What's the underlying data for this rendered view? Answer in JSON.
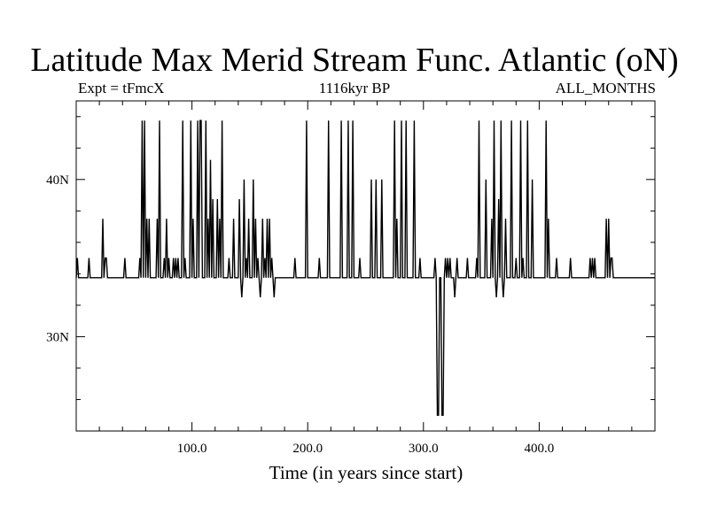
{
  "chart_data": {
    "type": "line",
    "title": "Latitude Max Merid Stream Func. Atlantic (oN)",
    "subtitle_left": "Expt = tFmcX",
    "subtitle_center": "1116kyr BP",
    "subtitle_right": "ALL_MONTHS",
    "xlabel": "Time (in years since start)",
    "ylabel": "",
    "xlim": [
      0,
      500
    ],
    "ylim": [
      24,
      45
    ],
    "x_ticks": [
      100,
      200,
      300,
      400
    ],
    "x_tick_labels": [
      "100.0",
      "200.0",
      "300.0",
      "400.0"
    ],
    "y_ticks": [
      30,
      40
    ],
    "y_tick_labels": [
      "30N",
      "40N"
    ],
    "baseline": 33.75,
    "series": [
      {
        "values": [
          [
            0,
            33.75
          ],
          [
            1,
            35.0
          ],
          [
            2,
            33.75
          ],
          [
            10,
            33.75
          ],
          [
            11,
            35.0
          ],
          [
            12,
            33.75
          ],
          [
            22,
            33.75
          ],
          [
            23,
            37.5
          ],
          [
            24,
            33.75
          ],
          [
            25,
            35.0
          ],
          [
            26,
            35.0
          ],
          [
            27,
            33.75
          ],
          [
            41,
            33.75
          ],
          [
            42,
            35.0
          ],
          [
            43,
            33.75
          ],
          [
            54,
            33.75
          ],
          [
            55,
            35.0
          ],
          [
            56,
            33.75
          ],
          [
            57,
            43.75
          ],
          [
            58,
            33.75
          ],
          [
            59,
            43.75
          ],
          [
            60,
            33.75
          ],
          [
            61,
            37.5
          ],
          [
            62,
            33.75
          ],
          [
            63,
            37.5
          ],
          [
            64,
            33.75
          ],
          [
            69,
            33.75
          ],
          [
            70,
            37.5
          ],
          [
            71,
            33.75
          ],
          [
            72,
            43.75
          ],
          [
            73,
            33.75
          ],
          [
            75,
            33.75
          ],
          [
            76,
            35.0
          ],
          [
            77,
            33.75
          ],
          [
            78,
            37.5
          ],
          [
            79,
            33.75
          ],
          [
            80,
            35.0
          ],
          [
            81,
            33.75
          ],
          [
            83,
            33.75
          ],
          [
            84,
            35.0
          ],
          [
            85,
            33.75
          ],
          [
            86,
            35.0
          ],
          [
            87,
            33.75
          ],
          [
            88,
            35.0
          ],
          [
            89,
            33.75
          ],
          [
            91,
            33.75
          ],
          [
            92,
            43.75
          ],
          [
            93,
            33.75
          ],
          [
            94,
            35.0
          ],
          [
            95,
            33.75
          ],
          [
            98,
            33.75
          ],
          [
            99,
            43.75
          ],
          [
            100,
            33.75
          ],
          [
            101,
            37.5
          ],
          [
            102,
            33.75
          ],
          [
            104,
            33.75
          ],
          [
            105,
            43.75
          ],
          [
            106,
            33.75
          ],
          [
            107,
            43.75
          ],
          [
            108,
            43.75
          ],
          [
            109,
            33.75
          ],
          [
            111,
            33.75
          ],
          [
            112,
            43.75
          ],
          [
            113,
            33.75
          ],
          [
            114,
            37.5
          ],
          [
            115,
            33.75
          ],
          [
            116,
            41.25
          ],
          [
            117,
            33.75
          ],
          [
            118,
            38.75
          ],
          [
            119,
            33.75
          ],
          [
            121,
            33.75
          ],
          [
            122,
            38.75
          ],
          [
            123,
            33.75
          ],
          [
            124,
            37.5
          ],
          [
            125,
            33.75
          ],
          [
            126,
            43.75
          ],
          [
            127,
            33.75
          ],
          [
            131,
            33.75
          ],
          [
            132,
            35.0
          ],
          [
            133,
            33.75
          ],
          [
            135,
            33.75
          ],
          [
            136,
            37.5
          ],
          [
            137,
            33.75
          ],
          [
            140,
            33.75
          ],
          [
            141,
            38.75
          ],
          [
            142,
            33.75
          ],
          [
            143,
            32.5
          ],
          [
            144,
            33.75
          ],
          [
            145,
            40.0
          ],
          [
            146,
            33.75
          ],
          [
            147,
            35.0
          ],
          [
            148,
            33.75
          ],
          [
            149,
            37.5
          ],
          [
            150,
            33.75
          ],
          [
            152,
            33.75
          ],
          [
            153,
            40.0
          ],
          [
            154,
            33.75
          ],
          [
            155,
            37.5
          ],
          [
            156,
            33.75
          ],
          [
            157,
            35.0
          ],
          [
            158,
            33.75
          ],
          [
            159,
            32.5
          ],
          [
            160,
            33.75
          ],
          [
            161,
            37.5
          ],
          [
            162,
            33.75
          ],
          [
            163,
            35.0
          ],
          [
            164,
            33.75
          ],
          [
            165,
            37.5
          ],
          [
            166,
            33.75
          ],
          [
            167,
            37.5
          ],
          [
            168,
            33.75
          ],
          [
            169,
            35.0
          ],
          [
            170,
            33.75
          ],
          [
            171,
            32.5
          ],
          [
            172,
            33.75
          ],
          [
            188,
            33.75
          ],
          [
            189,
            35.0
          ],
          [
            190,
            33.75
          ],
          [
            198,
            33.75
          ],
          [
            199,
            43.75
          ],
          [
            200,
            33.75
          ],
          [
            209,
            33.75
          ],
          [
            210,
            35.0
          ],
          [
            211,
            33.75
          ],
          [
            217,
            33.75
          ],
          [
            218,
            43.75
          ],
          [
            219,
            33.75
          ],
          [
            228,
            33.75
          ],
          [
            229,
            43.75
          ],
          [
            230,
            33.75
          ],
          [
            234,
            33.75
          ],
          [
            235,
            43.75
          ],
          [
            236,
            33.75
          ],
          [
            238,
            33.75
          ],
          [
            239,
            43.75
          ],
          [
            240,
            33.75
          ],
          [
            244,
            33.75
          ],
          [
            245,
            35.0
          ],
          [
            246,
            33.75
          ],
          [
            254,
            33.75
          ],
          [
            255,
            40.0
          ],
          [
            256,
            33.75
          ],
          [
            258,
            33.75
          ],
          [
            259,
            40.0
          ],
          [
            260,
            33.75
          ],
          [
            263,
            33.75
          ],
          [
            264,
            40.0
          ],
          [
            265,
            33.75
          ],
          [
            274,
            33.75
          ],
          [
            275,
            43.75
          ],
          [
            276,
            33.75
          ],
          [
            277,
            37.5
          ],
          [
            278,
            33.75
          ],
          [
            280,
            33.75
          ],
          [
            281,
            43.75
          ],
          [
            282,
            33.75
          ],
          [
            284,
            33.75
          ],
          [
            285,
            43.75
          ],
          [
            286,
            33.75
          ],
          [
            291,
            33.75
          ],
          [
            292,
            43.75
          ],
          [
            293,
            33.75
          ],
          [
            296,
            33.75
          ],
          [
            297,
            35.0
          ],
          [
            298,
            33.75
          ],
          [
            309,
            33.75
          ],
          [
            310,
            35.0
          ],
          [
            311,
            33.75
          ],
          [
            312,
            25.0
          ],
          [
            313,
            25.0
          ],
          [
            314,
            33.75
          ],
          [
            315,
            33.75
          ],
          [
            316,
            25.0
          ],
          [
            317,
            25.0
          ],
          [
            318,
            33.75
          ],
          [
            319,
            35.0
          ],
          [
            320,
            33.75
          ],
          [
            321,
            35.0
          ],
          [
            322,
            33.75
          ],
          [
            323,
            35.0
          ],
          [
            324,
            33.75
          ],
          [
            326,
            33.75
          ],
          [
            327,
            32.5
          ],
          [
            328,
            33.75
          ],
          [
            329,
            35.0
          ],
          [
            330,
            33.75
          ],
          [
            337,
            33.75
          ],
          [
            338,
            35.0
          ],
          [
            339,
            33.75
          ],
          [
            345,
            33.75
          ],
          [
            346,
            35.0
          ],
          [
            347,
            33.75
          ],
          [
            348,
            43.75
          ],
          [
            349,
            33.75
          ],
          [
            353,
            33.75
          ],
          [
            354,
            40.0
          ],
          [
            355,
            33.75
          ],
          [
            358,
            33.75
          ],
          [
            359,
            37.5
          ],
          [
            360,
            33.75
          ],
          [
            361,
            43.75
          ],
          [
            362,
            33.75
          ],
          [
            363,
            32.5
          ],
          [
            364,
            33.75
          ],
          [
            365,
            38.75
          ],
          [
            366,
            33.75
          ],
          [
            367,
            43.75
          ],
          [
            368,
            33.75
          ],
          [
            369,
            32.5
          ],
          [
            370,
            33.75
          ],
          [
            371,
            37.5
          ],
          [
            372,
            33.75
          ],
          [
            375,
            33.75
          ],
          [
            376,
            43.75
          ],
          [
            377,
            33.75
          ],
          [
            379,
            33.75
          ],
          [
            380,
            35.0
          ],
          [
            381,
            33.75
          ],
          [
            383,
            33.75
          ],
          [
            384,
            43.75
          ],
          [
            385,
            33.75
          ],
          [
            386,
            35.0
          ],
          [
            387,
            33.75
          ],
          [
            389,
            33.75
          ],
          [
            390,
            43.75
          ],
          [
            391,
            33.75
          ],
          [
            393,
            33.75
          ],
          [
            394,
            40.0
          ],
          [
            395,
            33.75
          ],
          [
            405,
            33.75
          ],
          [
            406,
            43.75
          ],
          [
            407,
            33.75
          ],
          [
            408,
            37.5
          ],
          [
            409,
            33.75
          ],
          [
            414,
            33.75
          ],
          [
            415,
            35.0
          ],
          [
            416,
            33.75
          ],
          [
            426,
            33.75
          ],
          [
            427,
            35.0
          ],
          [
            428,
            33.75
          ],
          [
            443,
            33.75
          ],
          [
            444,
            35.0
          ],
          [
            445,
            33.75
          ],
          [
            446,
            35.0
          ],
          [
            447,
            33.75
          ],
          [
            448,
            35.0
          ],
          [
            449,
            33.75
          ],
          [
            457,
            33.75
          ],
          [
            458,
            37.5
          ],
          [
            459,
            33.75
          ],
          [
            460,
            37.5
          ],
          [
            461,
            33.75
          ],
          [
            462,
            35.0
          ],
          [
            463,
            35.0
          ],
          [
            464,
            33.75
          ],
          [
            500,
            33.75
          ]
        ]
      }
    ]
  }
}
